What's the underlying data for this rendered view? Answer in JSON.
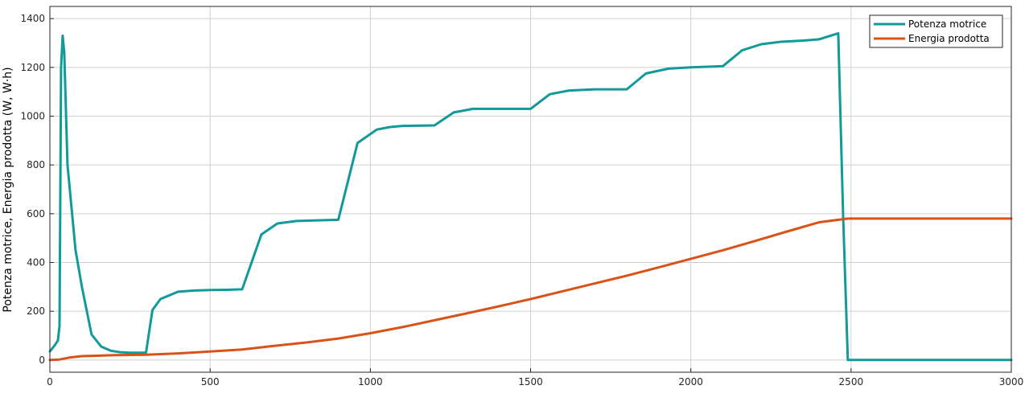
{
  "chart_data": {
    "type": "line",
    "title": "",
    "xlabel": "",
    "ylabel": "Potenza motrice, Energia prodotta (W, W·h)",
    "xlim": [
      0,
      3000
    ],
    "ylim": [
      -50,
      1450
    ],
    "xticks": [
      0,
      500,
      1000,
      1500,
      2000,
      2500,
      3000
    ],
    "yticks": [
      0,
      200,
      400,
      600,
      800,
      1000,
      1200,
      1400
    ],
    "grid": true,
    "legend_position": "top-right",
    "series": [
      {
        "name": "Potenza motrice",
        "color": "#129a9a",
        "x": [
          0,
          15,
          25,
          30,
          35,
          40,
          45,
          55,
          80,
          100,
          130,
          160,
          190,
          220,
          250,
          300,
          320,
          345,
          400,
          450,
          500,
          550,
          600,
          660,
          710,
          770,
          900,
          960,
          1020,
          1060,
          1100,
          1200,
          1260,
          1320,
          1400,
          1500,
          1560,
          1620,
          1700,
          1800,
          1860,
          1930,
          2000,
          2100,
          2160,
          2220,
          2280,
          2350,
          2400,
          2460,
          2475,
          2490,
          2500,
          2600,
          2800,
          3000
        ],
        "y": [
          35,
          60,
          80,
          140,
          1200,
          1330,
          1260,
          800,
          450,
          300,
          105,
          55,
          38,
          32,
          30,
          30,
          205,
          250,
          280,
          285,
          287,
          288,
          290,
          515,
          560,
          570,
          575,
          890,
          945,
          955,
          960,
          962,
          1015,
          1030,
          1030,
          1030,
          1090,
          1105,
          1110,
          1110,
          1175,
          1195,
          1200,
          1205,
          1270,
          1295,
          1305,
          1310,
          1315,
          1340,
          600,
          0,
          0,
          0,
          0,
          0
        ]
      },
      {
        "name": "Energia prodotta",
        "color": "#d95319",
        "x": [
          0,
          30,
          60,
          100,
          200,
          300,
          400,
          500,
          600,
          700,
          800,
          900,
          1000,
          1100,
          1200,
          1300,
          1400,
          1500,
          1600,
          1700,
          1800,
          1900,
          2000,
          2100,
          2200,
          2300,
          2400,
          2490,
          2500,
          3000
        ],
        "y": [
          0,
          2,
          10,
          16,
          20,
          22,
          27,
          35,
          43,
          58,
          72,
          88,
          110,
          135,
          163,
          191,
          220,
          250,
          282,
          314,
          346,
          380,
          415,
          450,
          488,
          527,
          565,
          580,
          580,
          580
        ]
      }
    ]
  }
}
